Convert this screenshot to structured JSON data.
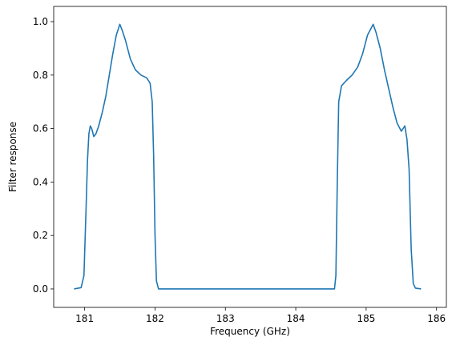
{
  "chart_data": {
    "type": "line",
    "xlabel": "Frequency (GHz)",
    "ylabel": "Filter response",
    "color": "#1f77b4",
    "x": [
      180.85,
      180.95,
      180.99,
      181.02,
      181.04,
      181.06,
      181.08,
      181.1,
      181.13,
      181.16,
      181.2,
      181.25,
      181.3,
      181.35,
      181.4,
      181.45,
      181.5,
      181.53,
      181.58,
      181.65,
      181.72,
      181.8,
      181.88,
      181.93,
      181.96,
      181.98,
      182.0,
      182.02,
      182.05,
      184.55,
      184.57,
      184.59,
      184.61,
      184.65,
      184.72,
      184.8,
      184.88,
      184.95,
      185.02,
      185.1,
      185.14,
      185.2,
      185.26,
      185.32,
      185.38,
      185.44,
      185.5,
      185.55,
      185.58,
      185.61,
      185.64,
      185.67,
      185.7,
      185.78
    ],
    "values": [
      0,
      0.005,
      0.05,
      0.3,
      0.48,
      0.58,
      0.61,
      0.6,
      0.57,
      0.58,
      0.61,
      0.66,
      0.72,
      0.8,
      0.88,
      0.95,
      0.99,
      0.97,
      0.93,
      0.86,
      0.82,
      0.8,
      0.79,
      0.77,
      0.7,
      0.5,
      0.2,
      0.03,
      0,
      0,
      0.05,
      0.4,
      0.7,
      0.76,
      0.78,
      0.8,
      0.83,
      0.88,
      0.95,
      0.99,
      0.96,
      0.9,
      0.82,
      0.75,
      0.68,
      0.62,
      0.59,
      0.61,
      0.56,
      0.45,
      0.15,
      0.02,
      0.003,
      0
    ],
    "xlim": [
      180.56,
      186.14
    ],
    "xticks": [
      181,
      182,
      183,
      184,
      185,
      186
    ],
    "ylim": [
      -0.069,
      1.057
    ],
    "yticks": [
      {
        "value": 0,
        "label": "0.0"
      },
      {
        "value": 0.2,
        "label": "0.2"
      },
      {
        "value": 0.4,
        "label": "0.4"
      },
      {
        "value": 0.6,
        "label": "0.6"
      },
      {
        "value": 0.8,
        "label": "0.8"
      },
      {
        "value": 1,
        "label": "1.0"
      }
    ]
  }
}
